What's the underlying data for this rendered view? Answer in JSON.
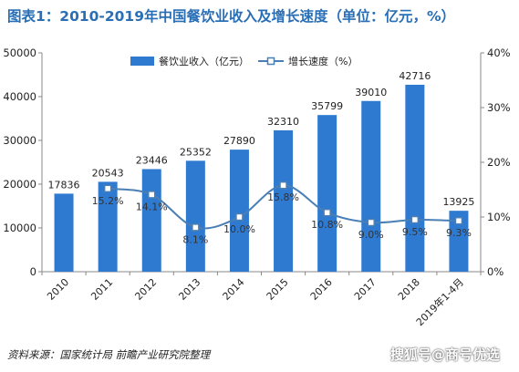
{
  "title": "图表1：2010-2019年中国餐饮业收入及增长速度（单位：亿元，%）",
  "source": "资料来源：国家统计局 前瞻产业研究院整理",
  "watermark": "搜狐号@商号优选",
  "chart_data": {
    "type": "bar",
    "categories": [
      "2010",
      "2011",
      "2012",
      "2013",
      "2014",
      "2015",
      "2016",
      "2017",
      "2018",
      "2019年1-4月"
    ],
    "series": [
      {
        "name": "餐饮业收入（亿元）",
        "type": "bar",
        "axis": "left",
        "values": [
          17836,
          20543,
          23446,
          25352,
          27890,
          32310,
          35799,
          39010,
          42716,
          13925
        ],
        "color": "#2f7ad1"
      },
      {
        "name": "增长速度（%）",
        "type": "line",
        "axis": "right",
        "values": [
          null,
          15.2,
          14.1,
          8.1,
          10.0,
          15.8,
          10.8,
          9.0,
          9.5,
          9.3
        ],
        "labels": [
          "",
          "15.2%",
          "14.1%",
          "8.1%",
          "10.0%",
          "15.8%",
          "10.8%",
          "9.0%",
          "9.5%",
          "9.3%"
        ],
        "color": "#4a7fb5"
      }
    ],
    "y_left": {
      "ylim": [
        0,
        50000
      ],
      "ticks": [
        "0",
        "10000",
        "20000",
        "30000",
        "40000",
        "50000"
      ]
    },
    "y_right": {
      "ylim": [
        0,
        40
      ],
      "ticks": [
        "0%",
        "10%",
        "20%",
        "30%",
        "40%"
      ]
    },
    "legend": "top-center",
    "grid": false
  }
}
